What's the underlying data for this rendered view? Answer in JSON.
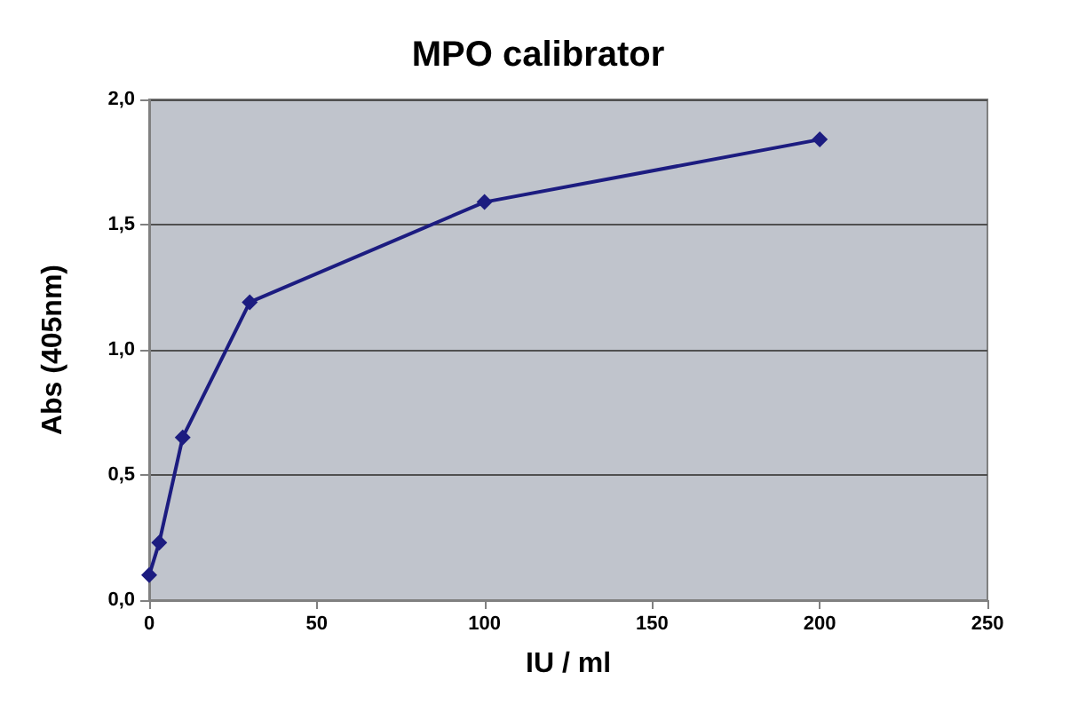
{
  "chart_data": {
    "type": "line",
    "title": "MPO calibrator",
    "xlabel": "IU / ml",
    "ylabel": "Abs (405nm)",
    "x": [
      0,
      3,
      10,
      30,
      100,
      200
    ],
    "series": [
      {
        "color": "#1c1c80",
        "values": [
          0.1,
          0.23,
          0.65,
          1.19,
          1.59,
          1.84
        ]
      }
    ],
    "xlim": [
      0,
      250
    ],
    "xticks": [
      0,
      50,
      100,
      150,
      200,
      250
    ],
    "ylim": [
      0,
      2
    ],
    "yticks": [
      {
        "value": 0,
        "label": "0,0"
      },
      {
        "value": 0.5,
        "label": "0,5"
      },
      {
        "value": 1,
        "label": "1,0"
      },
      {
        "value": 1.5,
        "label": "1,5"
      },
      {
        "value": 2,
        "label": "2,0"
      }
    ],
    "grid": "y",
    "marker": "diamond",
    "line_style": "solid"
  }
}
